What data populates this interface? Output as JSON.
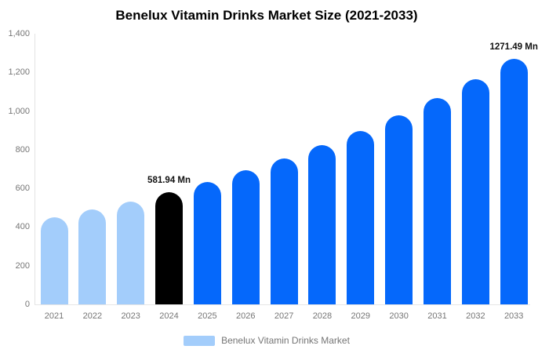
{
  "title": "Benelux Vitamin Drinks Market Size (2021-2033)",
  "chart_data": {
    "type": "bar",
    "title": "Benelux Vitamin Drinks Market Size (2021-2033)",
    "categories": [
      "2021",
      "2022",
      "2023",
      "2024",
      "2025",
      "2026",
      "2027",
      "2028",
      "2029",
      "2030",
      "2031",
      "2032",
      "2033"
    ],
    "values": [
      448.47,
      489.15,
      533.53,
      581.94,
      634.73,
      692.31,
      755.12,
      823.63,
      898.35,
      979.85,
      1068.74,
      1165.7,
      1271.49
    ],
    "series": [
      {
        "name": "Benelux Vitamin Drinks Market",
        "values": [
          448.47,
          489.15,
          533.53,
          581.94,
          634.73,
          692.31,
          755.12,
          823.63,
          898.35,
          979.85,
          1068.74,
          1165.7,
          1271.49
        ]
      }
    ],
    "unit": "Mn",
    "value_labels": {
      "2024": "581.94 Mn",
      "2033": "1271.49 Mn"
    },
    "xlabel": "",
    "ylabel": "",
    "ylim": [
      0,
      1400
    ],
    "ytick_values": [
      0,
      200,
      400,
      600,
      800,
      1000,
      1200,
      1400
    ],
    "ytick_labels": [
      "0",
      "200",
      "400",
      "600",
      "800",
      "1,000",
      "1,200",
      "1,400"
    ],
    "grid": false,
    "legend_position": "bottom",
    "legend_entries": [
      "Benelux Vitamin Drinks Market"
    ],
    "bar_colors": [
      "#A3CDFB",
      "#A3CDFB",
      "#A3CDFB",
      "#000000",
      "#0568FB",
      "#0568FB",
      "#0568FB",
      "#0568FB",
      "#0568FB",
      "#0568FB",
      "#0568FB",
      "#0568FB",
      "#0568FB"
    ]
  },
  "colors": {
    "historical_bar": "#A3CDFB",
    "base_year_bar": "#000000",
    "forecast_bar": "#0568FB",
    "axis_text": "#757575",
    "axis_line": "#e2e2e2",
    "title_text": "#000000"
  },
  "legend": {
    "label": "Benelux Vitamin Drinks Market",
    "swatch_color": "#A3CDFB"
  }
}
